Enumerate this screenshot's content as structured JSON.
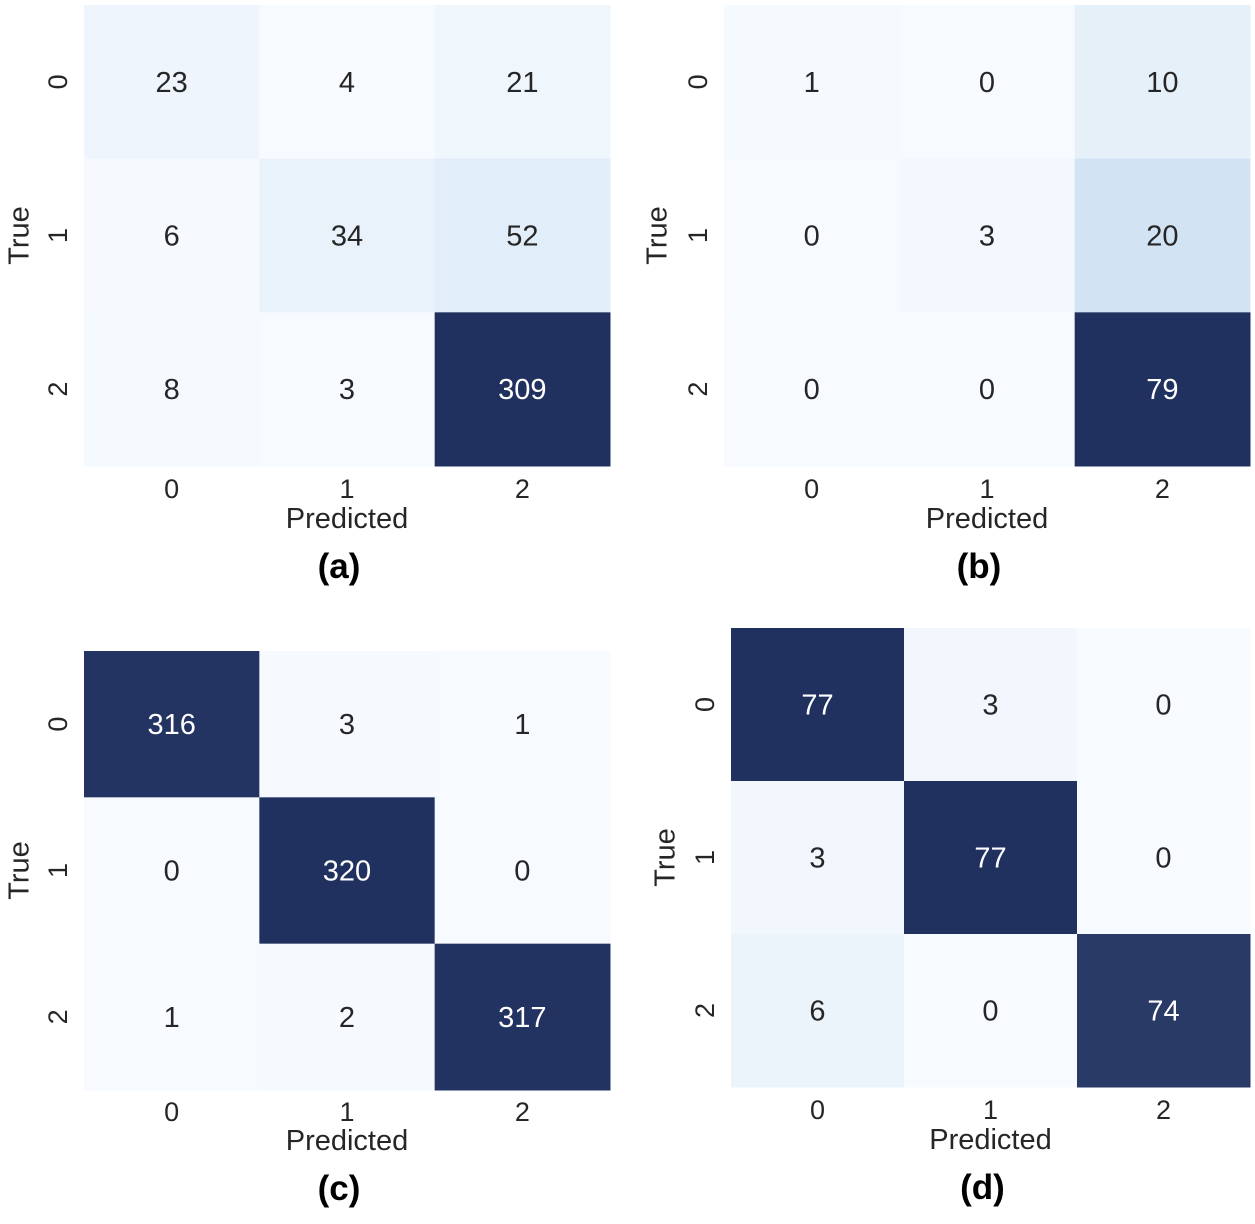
{
  "chart_data": [
    {
      "type": "heatmap",
      "panel_label": "(a)",
      "xlabel": "Predicted",
      "ylabel": "True",
      "x_ticks": [
        "0",
        "1",
        "2"
      ],
      "y_ticks": [
        "0",
        "1",
        "2"
      ],
      "matrix": [
        [
          23,
          4,
          21
        ],
        [
          6,
          34,
          52
        ],
        [
          8,
          3,
          309
        ]
      ],
      "colormap": "Blues"
    },
    {
      "type": "heatmap",
      "panel_label": "(b)",
      "xlabel": "Predicted",
      "ylabel": "True",
      "x_ticks": [
        "0",
        "1",
        "2"
      ],
      "y_ticks": [
        "0",
        "1",
        "2"
      ],
      "matrix": [
        [
          1,
          0,
          10
        ],
        [
          0,
          3,
          20
        ],
        [
          0,
          0,
          79
        ]
      ],
      "colormap": "Blues"
    },
    {
      "type": "heatmap",
      "panel_label": "(c)",
      "xlabel": "Predicted",
      "ylabel": "True",
      "x_ticks": [
        "0",
        "1",
        "2"
      ],
      "y_ticks": [
        "0",
        "1",
        "2"
      ],
      "matrix": [
        [
          316,
          3,
          1
        ],
        [
          0,
          320,
          0
        ],
        [
          1,
          2,
          317
        ]
      ],
      "colormap": "Blues"
    },
    {
      "type": "heatmap",
      "panel_label": "(d)",
      "xlabel": "Predicted",
      "ylabel": "True",
      "x_ticks": [
        "0",
        "1",
        "2"
      ],
      "y_ticks": [
        "0",
        "1",
        "2"
      ],
      "matrix": [
        [
          77,
          3,
          0
        ],
        [
          3,
          77,
          0
        ],
        [
          6,
          0,
          74
        ]
      ],
      "colormap": "Blues"
    }
  ],
  "colors": {
    "low": "#f7fbff",
    "mid1": "#dbe9f6",
    "mid2": "#c6dbef",
    "high": "#20305f",
    "text_dark": "#262626",
    "text_light": "#ffffff"
  }
}
